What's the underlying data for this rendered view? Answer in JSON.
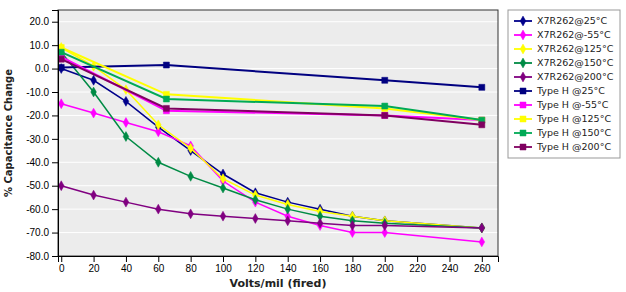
{
  "chart_data": {
    "type": "line",
    "xlabel": "Volts/mil (fired)",
    "ylabel": "% Capacitance Change",
    "xlim": [
      -2,
      270
    ],
    "ylim": [
      -80,
      25
    ],
    "xticks": [
      0,
      20,
      40,
      60,
      80,
      100,
      120,
      140,
      160,
      180,
      200,
      220,
      240,
      260
    ],
    "yticks": [
      {
        "value": 20.0,
        "label": "20.0"
      },
      {
        "value": 10.0,
        "label": "10.0"
      },
      {
        "value": 0.0,
        "label": "0.0"
      },
      {
        "value": -10.0,
        "label": "-10.0"
      },
      {
        "value": -20.0,
        "label": "-20.0"
      },
      {
        "value": -30.0,
        "label": "-30.0"
      },
      {
        "value": -40.0,
        "label": "-40.0"
      },
      {
        "value": -50.0,
        "label": "-50.0"
      },
      {
        "value": -60.0,
        "label": "-60.0"
      },
      {
        "value": -70.0,
        "label": "-70.0"
      },
      {
        "value": -80.0,
        "label": "-80.0"
      }
    ],
    "grid": "y",
    "legend": "right",
    "series": [
      {
        "name": "X7R262@25°C",
        "color": "#00008B",
        "marker": "diamond",
        "x": [
          0,
          20,
          40,
          60,
          80,
          100,
          120,
          140,
          160,
          180,
          200,
          260
        ],
        "values": [
          0,
          -5,
          -14,
          -25,
          -35,
          -45,
          -53,
          -57,
          -60,
          -63,
          -65,
          -68
        ]
      },
      {
        "name": "X7R262@-55°C",
        "color": "#FF00FF",
        "marker": "diamond",
        "x": [
          0,
          20,
          40,
          60,
          80,
          100,
          120,
          140,
          160,
          180,
          200,
          260
        ],
        "values": [
          -15,
          -19,
          -23,
          -27,
          -33,
          -48,
          -57,
          -63,
          -67,
          -70,
          -70,
          -74
        ]
      },
      {
        "name": "X7R262@125°C",
        "color": "#FFFF00",
        "marker": "diamond",
        "x": [
          0,
          20,
          40,
          60,
          80,
          100,
          120,
          140,
          160,
          180,
          200,
          260
        ],
        "values": [
          9,
          1,
          -9,
          -24,
          -34,
          -47,
          -54,
          -58,
          -61,
          -63,
          -65,
          -68
        ]
      },
      {
        "name": "X7R262@150°C",
        "color": "#008B45",
        "marker": "diamond",
        "x": [
          0,
          20,
          40,
          60,
          80,
          100,
          120,
          140,
          160,
          180,
          200,
          260
        ],
        "values": [
          7,
          -10,
          -29,
          -40,
          -46,
          -51,
          -56,
          -60,
          -63,
          -65,
          -66,
          -68
        ]
      },
      {
        "name": "X7R262@200°C",
        "color": "#800080",
        "marker": "diamond",
        "x": [
          0,
          20,
          40,
          60,
          80,
          100,
          120,
          140,
          160,
          180,
          200,
          260
        ],
        "values": [
          -50,
          -54,
          -57,
          -60,
          -62,
          -63,
          -64,
          -65,
          -66,
          -67,
          -67,
          -68
        ]
      },
      {
        "name": "Type H @25°C",
        "color": "#000080",
        "marker": "square",
        "x": [
          0,
          65,
          200,
          260
        ],
        "values": [
          0.5,
          1.5,
          -5,
          -8
        ]
      },
      {
        "name": "Type H @-55°C",
        "color": "#FF00FF",
        "marker": "square",
        "x": [
          0,
          65,
          200,
          260
        ],
        "values": [
          5,
          -18,
          -20,
          -22
        ]
      },
      {
        "name": "Type H @125°C",
        "color": "#FFFF00",
        "marker": "square",
        "x": [
          0,
          65,
          200,
          260
        ],
        "values": [
          9,
          -11,
          -17,
          -22
        ]
      },
      {
        "name": "Type H @150°C",
        "color": "#00AA55",
        "marker": "square",
        "x": [
          0,
          65,
          200,
          260
        ],
        "values": [
          7,
          -13,
          -16,
          -22
        ]
      },
      {
        "name": "Type H @200°C",
        "color": "#800060",
        "marker": "square",
        "x": [
          0,
          65,
          200,
          260
        ],
        "values": [
          4,
          -17,
          -20,
          -24
        ]
      }
    ]
  }
}
